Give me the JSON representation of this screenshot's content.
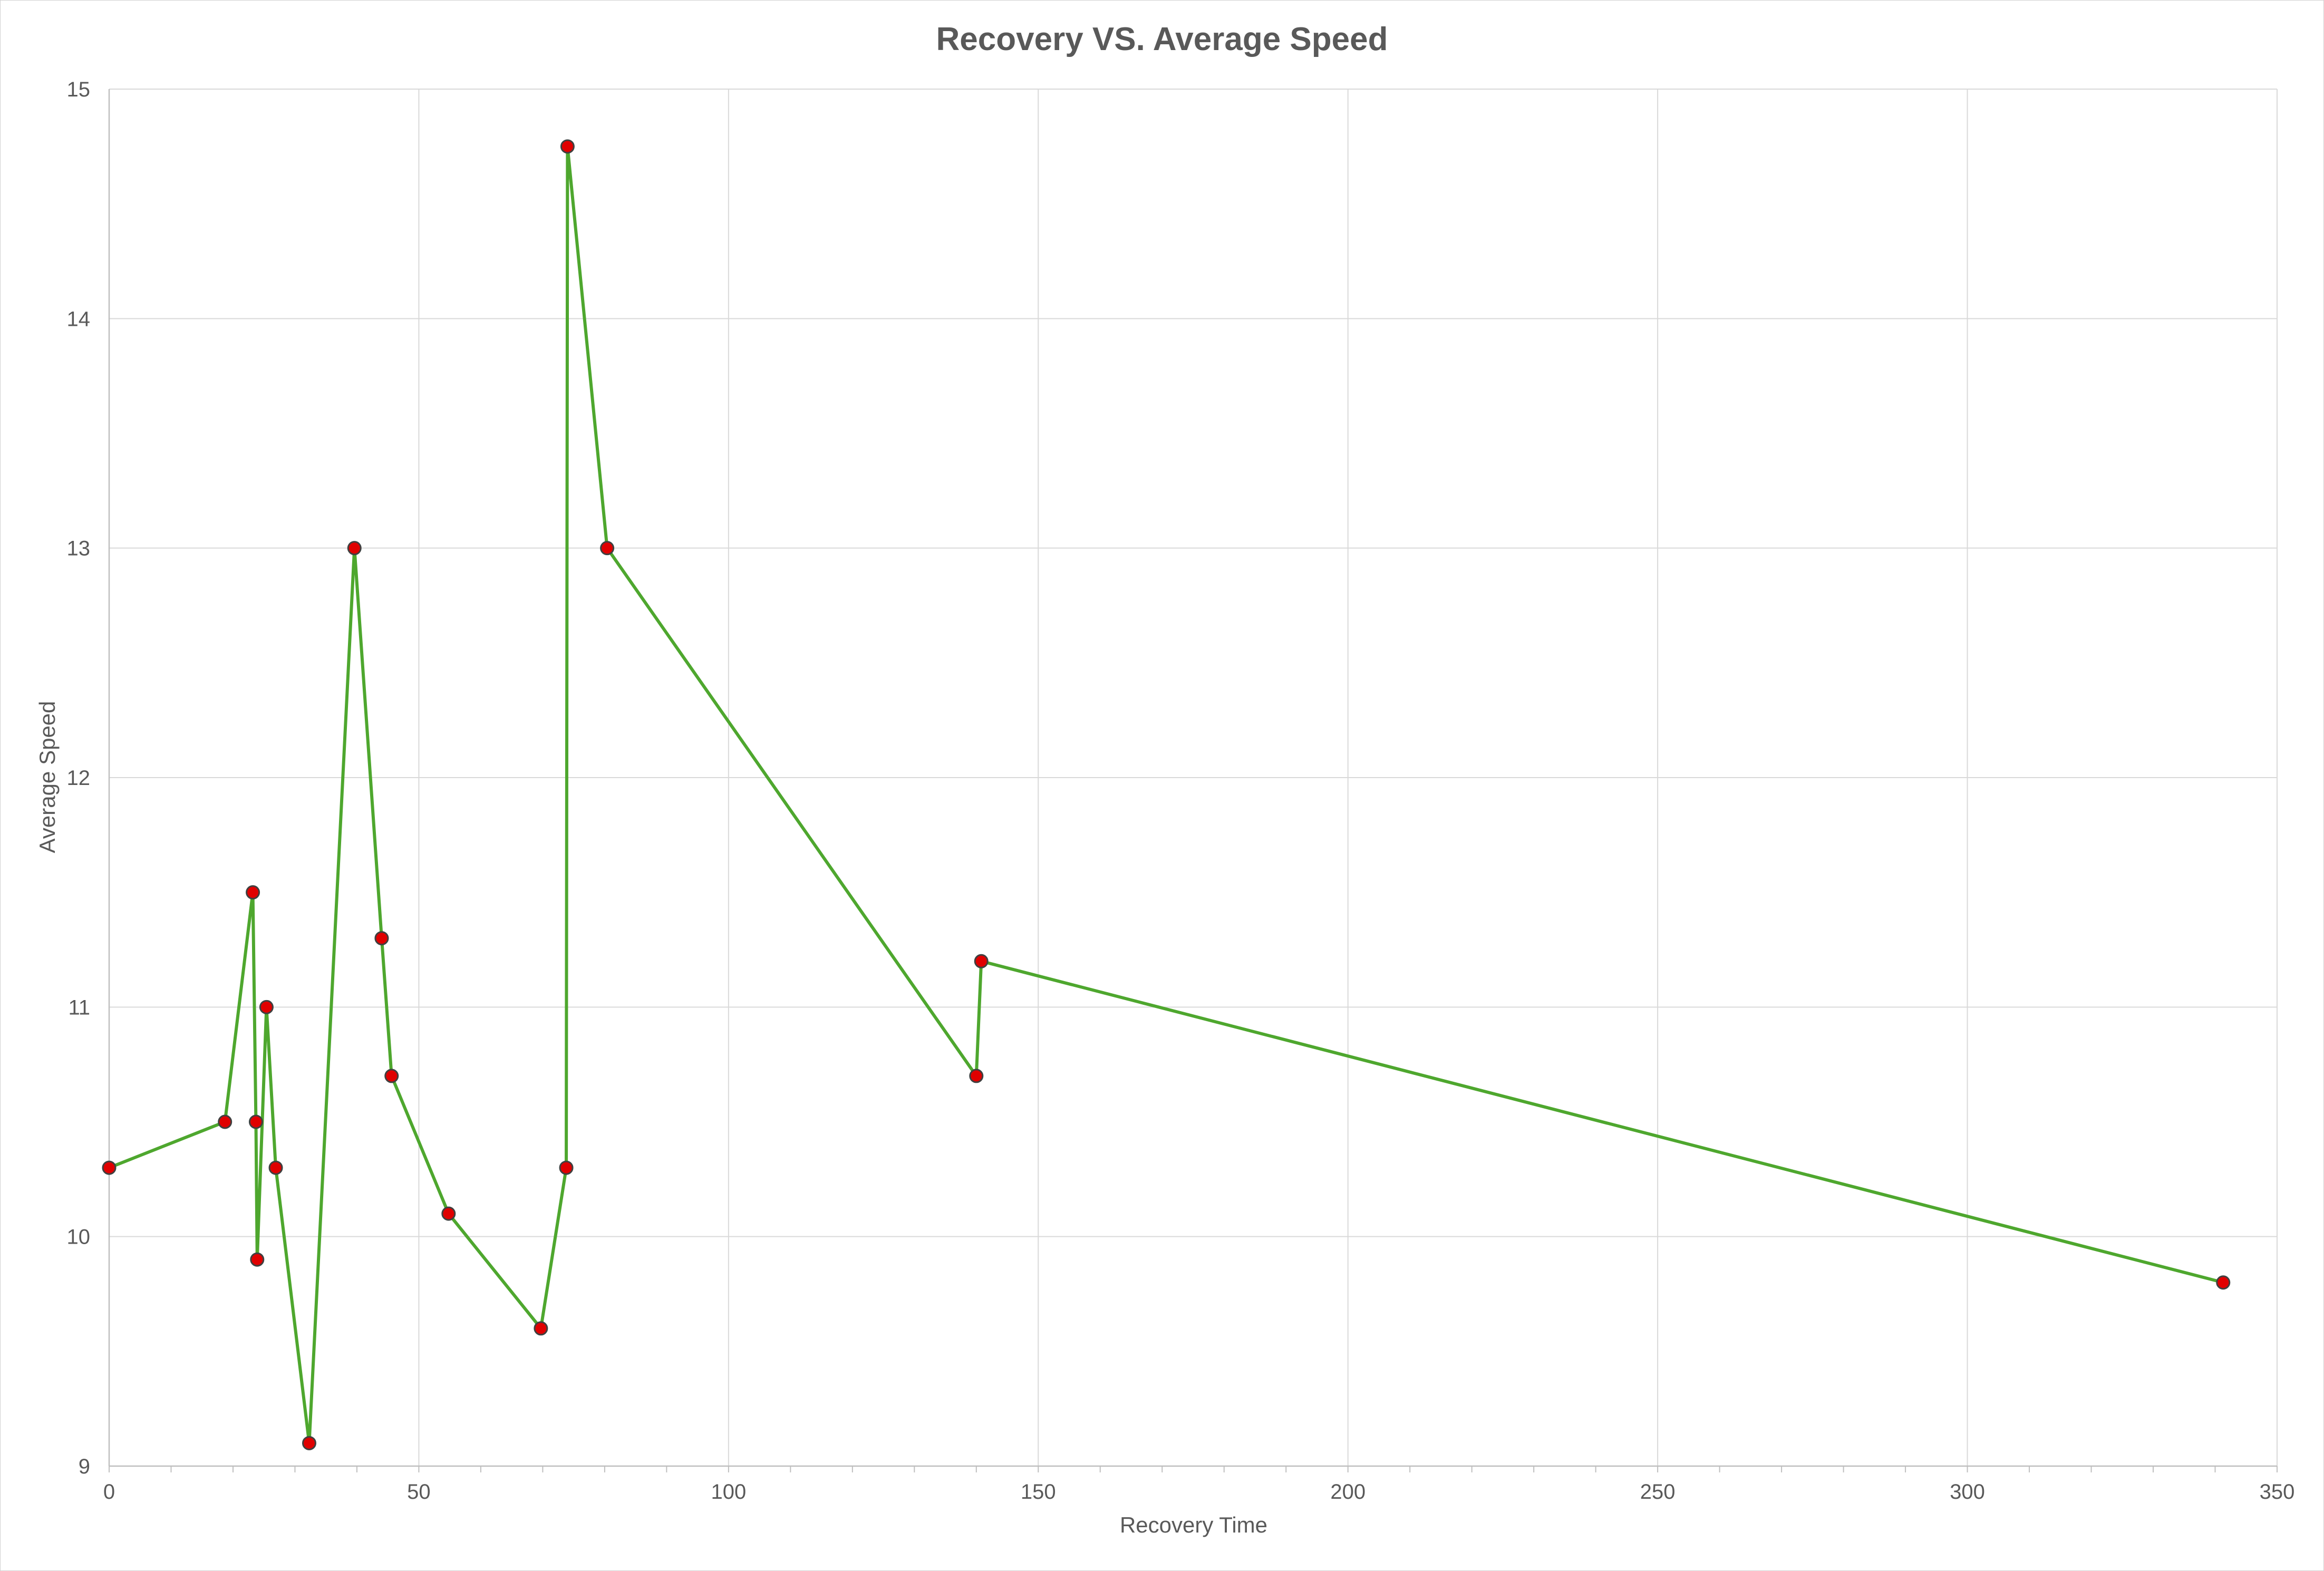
{
  "chart_data": {
    "type": "scatter",
    "title": "Recovery VS. Average Speed",
    "xlabel": "Recovery Time",
    "ylabel": "Average Speed",
    "xlim": [
      0,
      350
    ],
    "ylim": [
      9,
      15
    ],
    "x_ticks": [
      0,
      50,
      100,
      150,
      200,
      250,
      300,
      350
    ],
    "y_ticks": [
      9,
      10,
      11,
      12,
      13,
      14,
      15
    ],
    "x_tick_labels": [
      "0",
      "50",
      "100",
      "150",
      "200",
      "250",
      "300",
      "350"
    ],
    "y_tick_labels": [
      "9",
      "10",
      "11",
      "12",
      "13",
      "14",
      "15"
    ],
    "x_minor_step": 10,
    "grid": true,
    "legend": "none",
    "line_color": "#4ea72e",
    "marker_color": "#e00000",
    "marker_edge_color": "#404040",
    "series": [
      {
        "x": [
          0,
          18.7,
          23.2,
          23.7,
          23.9,
          25.4,
          26.9,
          32.3,
          39.6,
          44.0,
          45.6,
          54.8,
          69.7,
          73.8,
          74.0,
          80.4,
          140.0,
          140.8,
          341.3
        ],
        "y": [
          10.3,
          10.5,
          11.5,
          10.5,
          9.9,
          11.0,
          10.3,
          9.1,
          13.0,
          11.3,
          10.7,
          10.1,
          9.6,
          10.3,
          14.75,
          13.0,
          10.7,
          11.2,
          9.8
        ]
      }
    ]
  }
}
